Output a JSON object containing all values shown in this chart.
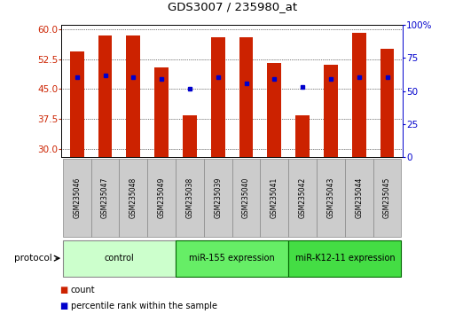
{
  "title": "GDS3007 / 235980_at",
  "samples": [
    "GSM235046",
    "GSM235047",
    "GSM235048",
    "GSM235049",
    "GSM235038",
    "GSM235039",
    "GSM235040",
    "GSM235041",
    "GSM235042",
    "GSM235043",
    "GSM235044",
    "GSM235045"
  ],
  "bar_heights": [
    54.5,
    58.5,
    58.5,
    50.5,
    38.5,
    58.0,
    58.0,
    51.5,
    38.5,
    51.0,
    59.0,
    55.0
  ],
  "blue_y": [
    48.0,
    48.5,
    48.0,
    47.5,
    45.0,
    48.0,
    46.5,
    47.5,
    45.5,
    47.5,
    48.0,
    48.0
  ],
  "ylim_left": [
    28,
    61
  ],
  "ylim_right": [
    0,
    100
  ],
  "yticks_left": [
    30,
    37.5,
    45,
    52.5,
    60
  ],
  "yticks_right": [
    0,
    25,
    50,
    75,
    100
  ],
  "bar_color": "#cc2200",
  "blue_color": "#0000cc",
  "bar_width": 0.5,
  "groups": [
    {
      "label": "control",
      "indices": [
        0,
        1,
        2,
        3
      ],
      "color": "#ccffcc",
      "edge_color": "#888888"
    },
    {
      "label": "miR-155 expression",
      "indices": [
        4,
        5,
        6,
        7
      ],
      "color": "#66ee66",
      "edge_color": "#006600"
    },
    {
      "label": "miR-K12-11 expression",
      "indices": [
        8,
        9,
        10,
        11
      ],
      "color": "#44dd44",
      "edge_color": "#006600"
    }
  ],
  "protocol_label": "protocol",
  "legend_count": "count",
  "legend_pct": "percentile rank within the sample",
  "base_value": 28,
  "fig_width": 5.13,
  "fig_height": 3.54,
  "dpi": 100
}
